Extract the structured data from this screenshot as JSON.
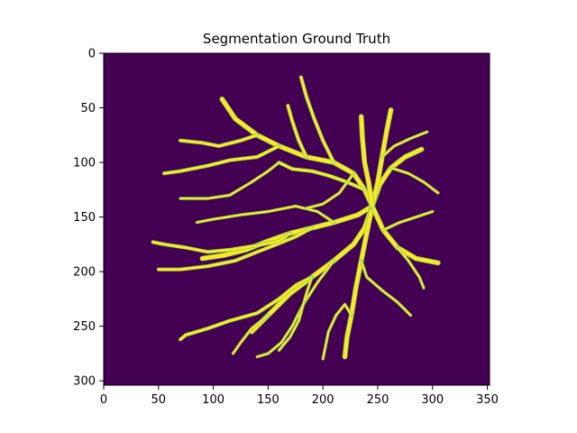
{
  "title": "Segmentation Ground Truth",
  "colors": {
    "background": "#440154",
    "vessel": "#fde725",
    "vessel_edge": "#5ec962"
  },
  "axes": {
    "x_range": [
      0,
      352
    ],
    "y_range": [
      0,
      304
    ],
    "x_ticks": [
      0,
      50,
      100,
      150,
      200,
      250,
      300,
      350
    ],
    "y_ticks": [
      0,
      50,
      100,
      150,
      200,
      250,
      300
    ],
    "y_inverted": true,
    "grid": false
  }
}
